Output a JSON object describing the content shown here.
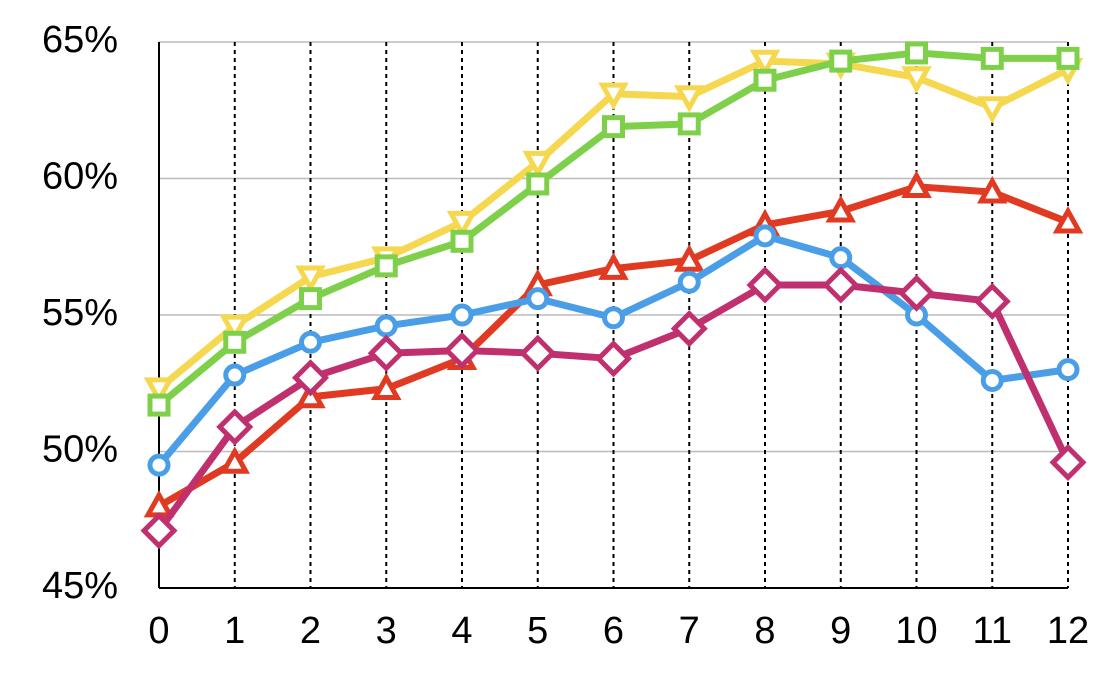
{
  "chart_data": {
    "type": "line",
    "x": [
      0,
      1,
      2,
      3,
      4,
      5,
      6,
      7,
      8,
      9,
      10,
      11,
      12
    ],
    "xlim": [
      0,
      12
    ],
    "xticks": [
      0,
      1,
      2,
      3,
      4,
      5,
      6,
      7,
      8,
      9,
      10,
      11,
      12
    ],
    "ylim": [
      45,
      65
    ],
    "yticks": [
      {
        "value": 45,
        "label": "45%"
      },
      {
        "value": 50,
        "label": "50%"
      },
      {
        "value": 55,
        "label": "55%"
      },
      {
        "value": 60,
        "label": "60%"
      },
      {
        "value": 65,
        "label": "65%"
      }
    ],
    "grid": true,
    "xgrid_style": "dotted",
    "series": [
      {
        "color": "#f5d84f",
        "marker": "triangle-down",
        "values": [
          52.3,
          54.6,
          56.4,
          57.1,
          58.4,
          60.6,
          63.1,
          63.0,
          64.3,
          64.2,
          63.7,
          62.6,
          64.0
        ]
      },
      {
        "color": "#7ed04b",
        "marker": "square",
        "values": [
          51.7,
          54.0,
          55.6,
          56.8,
          57.7,
          59.8,
          61.9,
          62.0,
          63.6,
          64.3,
          64.6,
          64.4,
          64.4
        ]
      },
      {
        "color": "#e03a23",
        "marker": "triangle",
        "values": [
          48.0,
          49.6,
          52.0,
          52.3,
          53.4,
          56.1,
          56.7,
          57.0,
          58.3,
          58.8,
          59.7,
          59.5,
          58.4
        ]
      },
      {
        "color": "#4a9ee8",
        "marker": "circle",
        "values": [
          49.5,
          52.8,
          54.0,
          54.6,
          55.0,
          55.6,
          54.9,
          56.2,
          57.9,
          57.1,
          55.0,
          52.6,
          53.0
        ]
      },
      {
        "color": "#c0306e",
        "marker": "diamond",
        "values": [
          47.1,
          50.9,
          52.7,
          53.6,
          53.7,
          53.6,
          53.4,
          54.5,
          56.1,
          56.1,
          55.8,
          55.5,
          49.6
        ]
      }
    ]
  }
}
